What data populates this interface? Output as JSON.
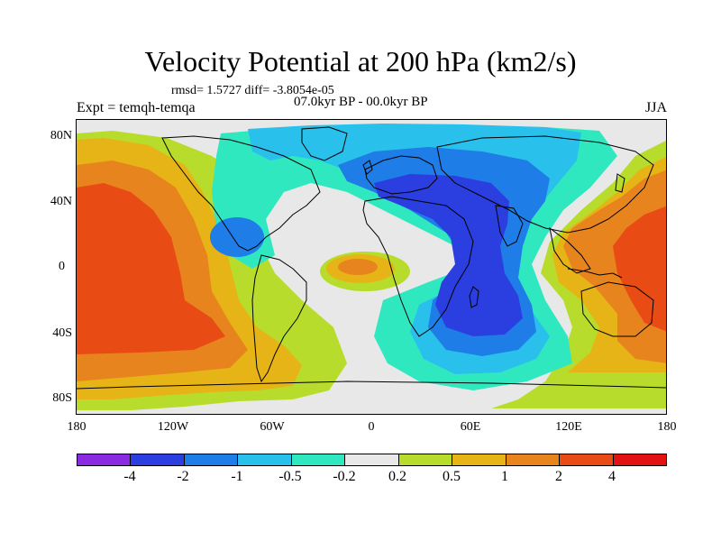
{
  "title": "Velocity Potential at 200 hPa (km2/s)",
  "subtitle": "rmsd= 1.5727 diff= -3.8054e-05",
  "left_label": "Expt = temqh-temqa",
  "center_label": "07.0kyr BP - 00.0kyr BP",
  "right_label": "JJA",
  "y_ticks": [
    "80N",
    "40N",
    "0",
    "40S",
    "80S"
  ],
  "x_ticks": [
    "180",
    "120W",
    "60W",
    "0",
    "60E",
    "120E",
    "180"
  ],
  "colorbar": {
    "colors": [
      "#8a2be2",
      "#2b3fe0",
      "#1e7de6",
      "#29c0ec",
      "#30e8c0",
      "#e8e8e8",
      "#b8dc2c",
      "#e6b416",
      "#e8841e",
      "#e84b14",
      "#e21212"
    ],
    "labels": [
      "-4",
      "-2",
      "-1",
      "-0.5",
      "-0.2",
      "0.2",
      "0.5",
      "1",
      "2",
      "4"
    ]
  }
}
